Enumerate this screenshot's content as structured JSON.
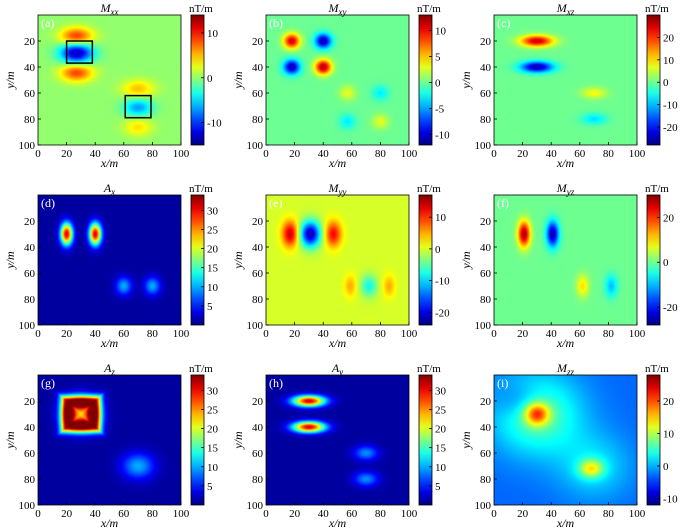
{
  "chart_data": [
    {
      "type": "heatmap",
      "panel_label": "(a)",
      "title": "Mxx",
      "title_main": "M",
      "title_sub": "xx",
      "xlabel": "x/m",
      "ylabel": "y/m",
      "x_ticks": [
        20,
        40,
        60,
        80,
        100
      ],
      "y_ticks": [
        20,
        40,
        60,
        80,
        100
      ],
      "xlim": [
        0,
        100
      ],
      "ylim": [
        0,
        100
      ],
      "unit": "nT/m",
      "colorbar_ticks": [
        10,
        0,
        -10
      ],
      "clim": [
        -15,
        14
      ],
      "background": 0,
      "sources": [
        {
          "x": 27,
          "y": 17,
          "v": 10,
          "sx": 8,
          "sy": 5
        },
        {
          "x": 27,
          "y": 29,
          "v": -14,
          "sx": 8,
          "sy": 6
        },
        {
          "x": 27,
          "y": 44,
          "v": 9,
          "sx": 8,
          "sy": 5
        },
        {
          "x": 70,
          "y": 57,
          "v": 5,
          "sx": 8,
          "sy": 5
        },
        {
          "x": 70,
          "y": 71,
          "v": -7,
          "sx": 7,
          "sy": 5
        },
        {
          "x": 70,
          "y": 86,
          "v": 4,
          "sx": 7,
          "sy": 5
        }
      ],
      "boxes": [
        {
          "x0": 20,
          "y0": 20,
          "x1": 38,
          "y1": 37
        },
        {
          "x0": 61,
          "y0": 62,
          "x1": 79,
          "y1": 79
        }
      ]
    },
    {
      "type": "heatmap",
      "panel_label": "(b)",
      "title": "Mxy",
      "title_main": "M",
      "title_sub": "xy",
      "xlabel": "x/m",
      "ylabel": "y/m",
      "x_ticks": [
        20,
        40,
        60,
        80,
        100
      ],
      "y_ticks": [
        20,
        40,
        60,
        80,
        100
      ],
      "xlim": [
        0,
        100
      ],
      "ylim": [
        0,
        100
      ],
      "unit": "nT/m",
      "colorbar_ticks": [
        10,
        5,
        0,
        -5,
        -10
      ],
      "clim": [
        -12,
        13
      ],
      "background": 0,
      "sources": [
        {
          "x": 18,
          "y": 20,
          "v": 11,
          "sx": 4,
          "sy": 4
        },
        {
          "x": 40,
          "y": 20,
          "v": -11,
          "sx": 4,
          "sy": 4
        },
        {
          "x": 18,
          "y": 40,
          "v": -11,
          "sx": 4,
          "sy": 4
        },
        {
          "x": 40,
          "y": 40,
          "v": 12,
          "sx": 4,
          "sy": 4
        },
        {
          "x": 57,
          "y": 60,
          "v": 3,
          "sx": 4,
          "sy": 4
        },
        {
          "x": 80,
          "y": 60,
          "v": -3,
          "sx": 4,
          "sy": 4
        },
        {
          "x": 57,
          "y": 82,
          "v": -3,
          "sx": 4,
          "sy": 4
        },
        {
          "x": 80,
          "y": 82,
          "v": 3,
          "sx": 4,
          "sy": 4
        }
      ]
    },
    {
      "type": "heatmap",
      "panel_label": "(c)",
      "title": "Mxz",
      "title_main": "M",
      "title_sub": "xz",
      "xlabel": "x/m",
      "ylabel": "y/m",
      "x_ticks": [
        20,
        40,
        60,
        80,
        100
      ],
      "y_ticks": [
        20,
        40,
        60,
        80,
        100
      ],
      "xlim": [
        0,
        100
      ],
      "ylim": [
        0,
        100
      ],
      "unit": "nT/m",
      "colorbar_ticks": [
        20,
        10,
        0,
        -10,
        -20
      ],
      "clim": [
        -28,
        30
      ],
      "background": 0,
      "sources": [
        {
          "x": 30,
          "y": 20,
          "v": 26,
          "sx": 8,
          "sy": 3
        },
        {
          "x": 30,
          "y": 40,
          "v": -26,
          "sx": 8,
          "sy": 3
        },
        {
          "x": 70,
          "y": 60,
          "v": 8,
          "sx": 6,
          "sy": 3
        },
        {
          "x": 70,
          "y": 80,
          "v": -8,
          "sx": 6,
          "sy": 3
        }
      ]
    },
    {
      "type": "heatmap",
      "panel_label": "(d)",
      "title": "Ax",
      "title_main": "A",
      "title_sub": "x",
      "xlabel": "x/m",
      "ylabel": "y/m",
      "x_ticks": [
        20,
        40,
        60,
        80,
        100
      ],
      "y_ticks": [
        20,
        40,
        60,
        80,
        100
      ],
      "xlim": [
        0,
        100
      ],
      "ylim": [
        0,
        100
      ],
      "unit": "nT/m",
      "colorbar_ticks": [
        30,
        25,
        20,
        15,
        10,
        5
      ],
      "clim": [
        0,
        34
      ],
      "background": 1,
      "sources": [
        {
          "x": 20,
          "y": 30,
          "v": 30,
          "sx": 3,
          "sy": 6
        },
        {
          "x": 40,
          "y": 30,
          "v": 30,
          "sx": 3,
          "sy": 6
        },
        {
          "x": 60,
          "y": 70,
          "v": 9,
          "sx": 4,
          "sy": 5
        },
        {
          "x": 80,
          "y": 70,
          "v": 9,
          "sx": 4,
          "sy": 5
        }
      ]
    },
    {
      "type": "heatmap",
      "panel_label": "(e)",
      "title": "Myy",
      "title_main": "M",
      "title_sub": "yy",
      "xlabel": "x/m",
      "ylabel": "y/m",
      "x_ticks": [
        20,
        40,
        60,
        80,
        100
      ],
      "y_ticks": [
        20,
        40,
        60,
        80,
        100
      ],
      "xlim": [
        0,
        100
      ],
      "ylim": [
        0,
        100
      ],
      "unit": "nT/m",
      "colorbar_ticks": [
        10,
        0,
        -10,
        -20
      ],
      "clim": [
        -24,
        17
      ],
      "background": 0,
      "sources": [
        {
          "x": 17,
          "y": 30,
          "v": 14,
          "sx": 4,
          "sy": 7
        },
        {
          "x": 31,
          "y": 30,
          "v": -22,
          "sx": 5,
          "sy": 7
        },
        {
          "x": 47,
          "y": 30,
          "v": 12,
          "sx": 4,
          "sy": 7
        },
        {
          "x": 59,
          "y": 70,
          "v": 5,
          "sx": 3,
          "sy": 6
        },
        {
          "x": 72,
          "y": 70,
          "v": -8,
          "sx": 4,
          "sy": 6
        },
        {
          "x": 86,
          "y": 70,
          "v": 5,
          "sx": 3,
          "sy": 6
        }
      ]
    },
    {
      "type": "heatmap",
      "panel_label": "(f)",
      "title": "Myz",
      "title_main": "M",
      "title_sub": "yz",
      "xlabel": "x/m",
      "ylabel": "y/m",
      "x_ticks": [
        20,
        40,
        60,
        80,
        100
      ],
      "y_ticks": [
        20,
        40,
        60,
        80,
        100
      ],
      "xlim": [
        0,
        100
      ],
      "ylim": [
        0,
        100
      ],
      "unit": "nT/m",
      "colorbar_ticks": [
        20,
        0,
        -20
      ],
      "clim": [
        -28,
        30
      ],
      "background": 0,
      "sources": [
        {
          "x": 21,
          "y": 30,
          "v": 28,
          "sx": 3,
          "sy": 7
        },
        {
          "x": 41,
          "y": 30,
          "v": -26,
          "sx": 3,
          "sy": 7
        },
        {
          "x": 62,
          "y": 70,
          "v": 10,
          "sx": 3,
          "sy": 6
        },
        {
          "x": 82,
          "y": 70,
          "v": -10,
          "sx": 3,
          "sy": 6
        }
      ]
    },
    {
      "type": "heatmap",
      "panel_label": "(g)",
      "title": "Az",
      "title_main": "A",
      "title_sub": "z",
      "xlabel": "x/m",
      "ylabel": "y/m",
      "x_ticks": [
        20,
        40,
        60,
        80,
        100
      ],
      "y_ticks": [
        20,
        40,
        60,
        80,
        100
      ],
      "xlim": [
        0,
        100
      ],
      "ylim": [
        0,
        100
      ],
      "unit": "nT/m",
      "colorbar_ticks": [
        30,
        25,
        20,
        15,
        10,
        5
      ],
      "clim": [
        0,
        34
      ],
      "background": 1,
      "frame_sources": [
        {
          "x": 30,
          "y": 30,
          "v": 32,
          "hw": 9,
          "hh": 9,
          "w": 3.5
        }
      ],
      "sources": [
        {
          "x": 30,
          "y": 30,
          "v": 20,
          "sx": 8,
          "sy": 8
        },
        {
          "x": 70,
          "y": 70,
          "v": 9,
          "sx": 8,
          "sy": 7
        }
      ]
    },
    {
      "type": "heatmap",
      "panel_label": "(h)",
      "title": "Ay",
      "title_main": "A",
      "title_sub": "y",
      "xlabel": "x/m",
      "ylabel": "y/m",
      "x_ticks": [
        20,
        40,
        60,
        80,
        100
      ],
      "y_ticks": [
        20,
        40,
        60,
        80,
        100
      ],
      "xlim": [
        0,
        100
      ],
      "ylim": [
        0,
        100
      ],
      "unit": "nT/m",
      "colorbar_ticks": [
        30,
        25,
        20,
        15,
        10,
        5
      ],
      "clim": [
        0,
        34
      ],
      "background": 1,
      "sources": [
        {
          "x": 30,
          "y": 20,
          "v": 30,
          "sx": 8,
          "sy": 3
        },
        {
          "x": 30,
          "y": 40,
          "v": 30,
          "sx": 8,
          "sy": 3
        },
        {
          "x": 70,
          "y": 60,
          "v": 8,
          "sx": 6,
          "sy": 4
        },
        {
          "x": 70,
          "y": 80,
          "v": 8,
          "sx": 6,
          "sy": 4
        }
      ]
    },
    {
      "type": "heatmap",
      "panel_label": "(i)",
      "title": "Mzz",
      "title_main": "M",
      "title_sub": "zz",
      "xlabel": "x/m",
      "ylabel": "y/m",
      "x_ticks": [
        20,
        40,
        60,
        80,
        100
      ],
      "y_ticks": [
        20,
        40,
        60,
        80,
        100
      ],
      "xlim": [
        0,
        100
      ],
      "ylim": [
        0,
        100
      ],
      "unit": "nT/m",
      "colorbar_ticks": [
        20,
        10,
        0,
        -10
      ],
      "clim": [
        -12,
        28
      ],
      "background": -3,
      "sources": [
        {
          "x": 30,
          "y": 30,
          "v": 10,
          "sx": 22,
          "sy": 22
        },
        {
          "x": 70,
          "y": 70,
          "v": 5,
          "sx": 18,
          "sy": 18
        },
        {
          "x": 30,
          "y": 30,
          "v": 16,
          "sx": 6,
          "sy": 6
        },
        {
          "x": 68,
          "y": 72,
          "v": 12,
          "sx": 6,
          "sy": 5
        },
        {
          "x": 18,
          "y": 20,
          "v": -4,
          "sx": 12,
          "sy": 10
        }
      ]
    }
  ]
}
